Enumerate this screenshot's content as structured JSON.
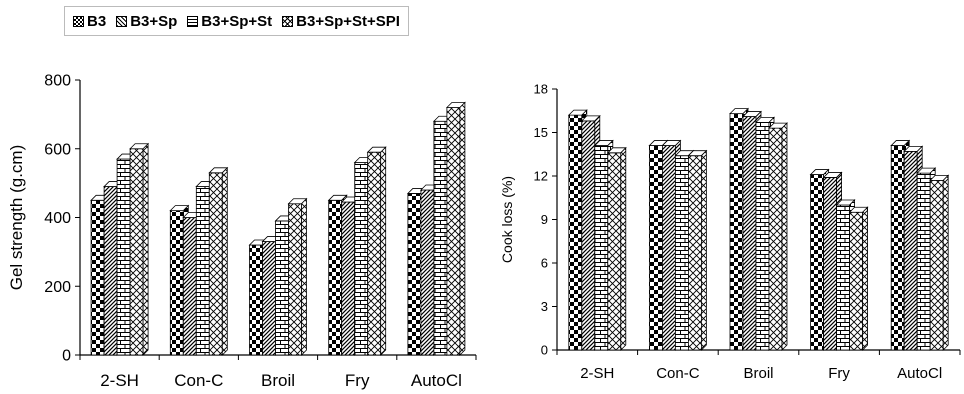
{
  "legend": {
    "items": [
      {
        "label": "B3",
        "pattern": "checker"
      },
      {
        "label": "B3+Sp",
        "pattern": "diag-dense"
      },
      {
        "label": "B3+Sp+St",
        "pattern": "brick"
      },
      {
        "label": "B3+Sp+St+SPI",
        "pattern": "crosshatch"
      }
    ]
  },
  "chart_data": [
    {
      "type": "bar",
      "categories": [
        "2-SH",
        "Con-C",
        "Broil",
        "Fry",
        "AutoCl"
      ],
      "series": [
        {
          "name": "B3",
          "values": [
            450,
            420,
            320,
            450,
            470
          ]
        },
        {
          "name": "B3+Sp",
          "values": [
            490,
            400,
            330,
            445,
            480
          ]
        },
        {
          "name": "B3+Sp+St",
          "values": [
            570,
            490,
            390,
            560,
            680
          ]
        },
        {
          "name": "B3+Sp+St+SPI",
          "values": [
            600,
            530,
            440,
            590,
            720
          ]
        }
      ],
      "ylabel": "Gel strength (g.cm)",
      "ylim": [
        0,
        800
      ],
      "yticks": [
        "0",
        "200",
        "400",
        "600",
        "800"
      ],
      "grid": false
    },
    {
      "type": "bar",
      "categories": [
        "2-SH",
        "Con-C",
        "Broil",
        "Fry",
        "AutoCl"
      ],
      "series": [
        {
          "name": "B3",
          "values": [
            16.2,
            14.1,
            16.3,
            12.1,
            14.1
          ]
        },
        {
          "name": "B3+Sp",
          "values": [
            15.8,
            14.1,
            16.1,
            11.9,
            13.7
          ]
        },
        {
          "name": "B3+Sp+St",
          "values": [
            14.1,
            13.4,
            15.7,
            10.0,
            12.2
          ]
        },
        {
          "name": "B3+Sp+St+SPI",
          "values": [
            13.6,
            13.4,
            15.3,
            9.5,
            11.7
          ]
        }
      ],
      "ylabel": "Cook loss (%)",
      "ylim": [
        0,
        18
      ],
      "yticks": [
        "0",
        "3",
        "6",
        "9",
        "12",
        "15",
        "18"
      ],
      "grid": false
    }
  ]
}
